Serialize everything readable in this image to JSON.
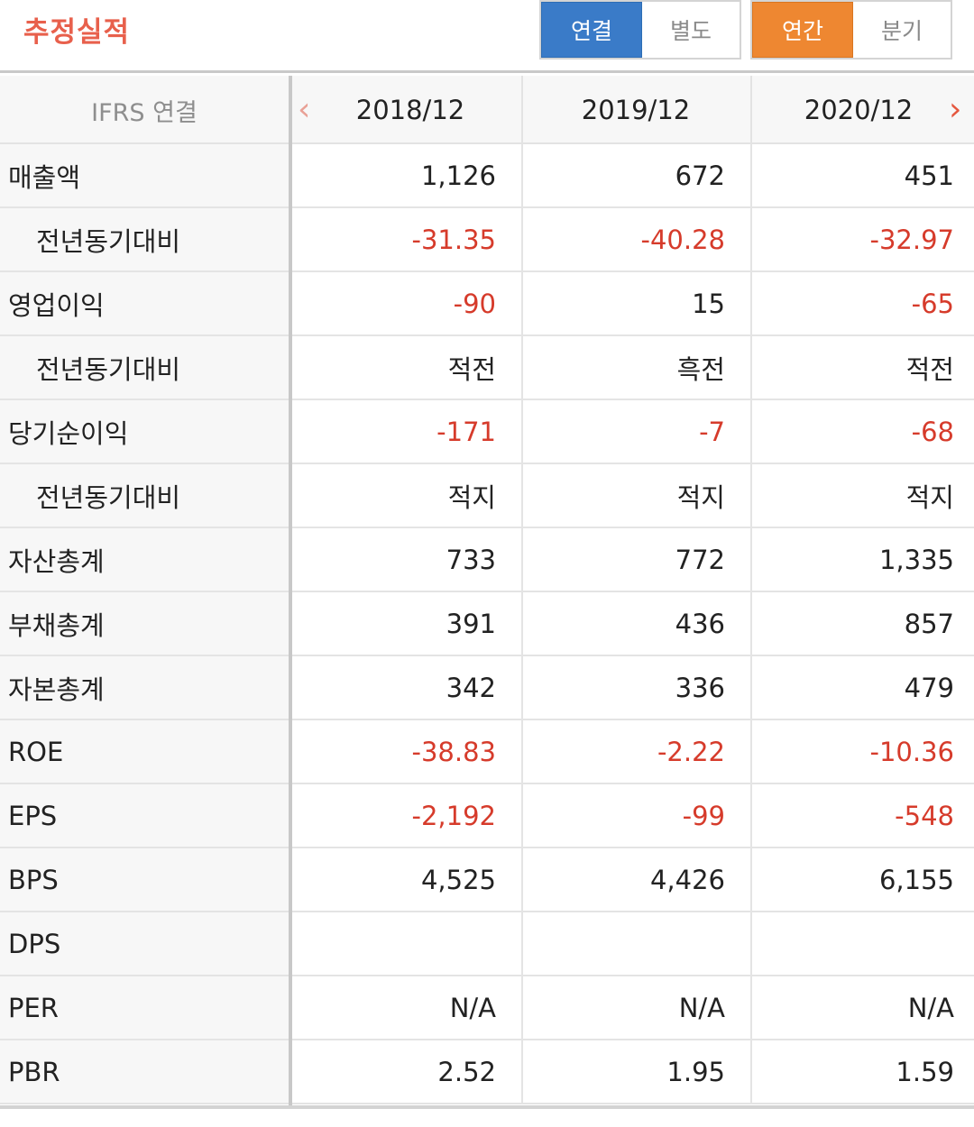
{
  "header": {
    "title": "추정실적",
    "scope_options": [
      "연결",
      "별도"
    ],
    "scope_selected": "연결",
    "period_options": [
      "연간",
      "분기"
    ],
    "period_selected": "연간"
  },
  "table": {
    "label_header": "IFRS 연결",
    "periods": [
      "2018/12",
      "2019/12",
      "2020/12"
    ],
    "prev_icon": "chevron-left-icon",
    "next_icon": "chevron-right-icon",
    "negative_color": "#d63b2b",
    "rows": [
      {
        "label": "매출액",
        "sub": false,
        "values": [
          "1,126",
          "672",
          "451"
        ],
        "neg": [
          false,
          false,
          false
        ]
      },
      {
        "label": "전년동기대비",
        "sub": true,
        "values": [
          "-31.35",
          "-40.28",
          "-32.97"
        ],
        "neg": [
          true,
          true,
          true
        ]
      },
      {
        "label": "영업이익",
        "sub": false,
        "values": [
          "-90",
          "15",
          "-65"
        ],
        "neg": [
          true,
          false,
          true
        ]
      },
      {
        "label": "전년동기대비",
        "sub": true,
        "values": [
          "적전",
          "흑전",
          "적전"
        ],
        "neg": [
          false,
          false,
          false
        ]
      },
      {
        "label": "당기순이익",
        "sub": false,
        "values": [
          "-171",
          "-7",
          "-68"
        ],
        "neg": [
          true,
          true,
          true
        ]
      },
      {
        "label": "전년동기대비",
        "sub": true,
        "values": [
          "적지",
          "적지",
          "적지"
        ],
        "neg": [
          false,
          false,
          false
        ]
      },
      {
        "label": "자산총계",
        "sub": false,
        "values": [
          "733",
          "772",
          "1,335"
        ],
        "neg": [
          false,
          false,
          false
        ]
      },
      {
        "label": "부채총계",
        "sub": false,
        "values": [
          "391",
          "436",
          "857"
        ],
        "neg": [
          false,
          false,
          false
        ]
      },
      {
        "label": "자본총계",
        "sub": false,
        "values": [
          "342",
          "336",
          "479"
        ],
        "neg": [
          false,
          false,
          false
        ]
      },
      {
        "label": "ROE",
        "sub": false,
        "values": [
          "-38.83",
          "-2.22",
          "-10.36"
        ],
        "neg": [
          true,
          true,
          true
        ]
      },
      {
        "label": "EPS",
        "sub": false,
        "values": [
          "-2,192",
          "-99",
          "-548"
        ],
        "neg": [
          true,
          true,
          true
        ]
      },
      {
        "label": "BPS",
        "sub": false,
        "values": [
          "4,525",
          "4,426",
          "6,155"
        ],
        "neg": [
          false,
          false,
          false
        ]
      },
      {
        "label": "DPS",
        "sub": false,
        "values": [
          "",
          "",
          ""
        ],
        "neg": [
          false,
          false,
          false
        ]
      },
      {
        "label": "PER",
        "sub": false,
        "values": [
          "N/A",
          "N/A",
          "N/A"
        ],
        "neg": [
          false,
          false,
          false
        ]
      },
      {
        "label": "PBR",
        "sub": false,
        "values": [
          "2.52",
          "1.95",
          "1.59"
        ],
        "neg": [
          false,
          false,
          false
        ]
      }
    ]
  }
}
